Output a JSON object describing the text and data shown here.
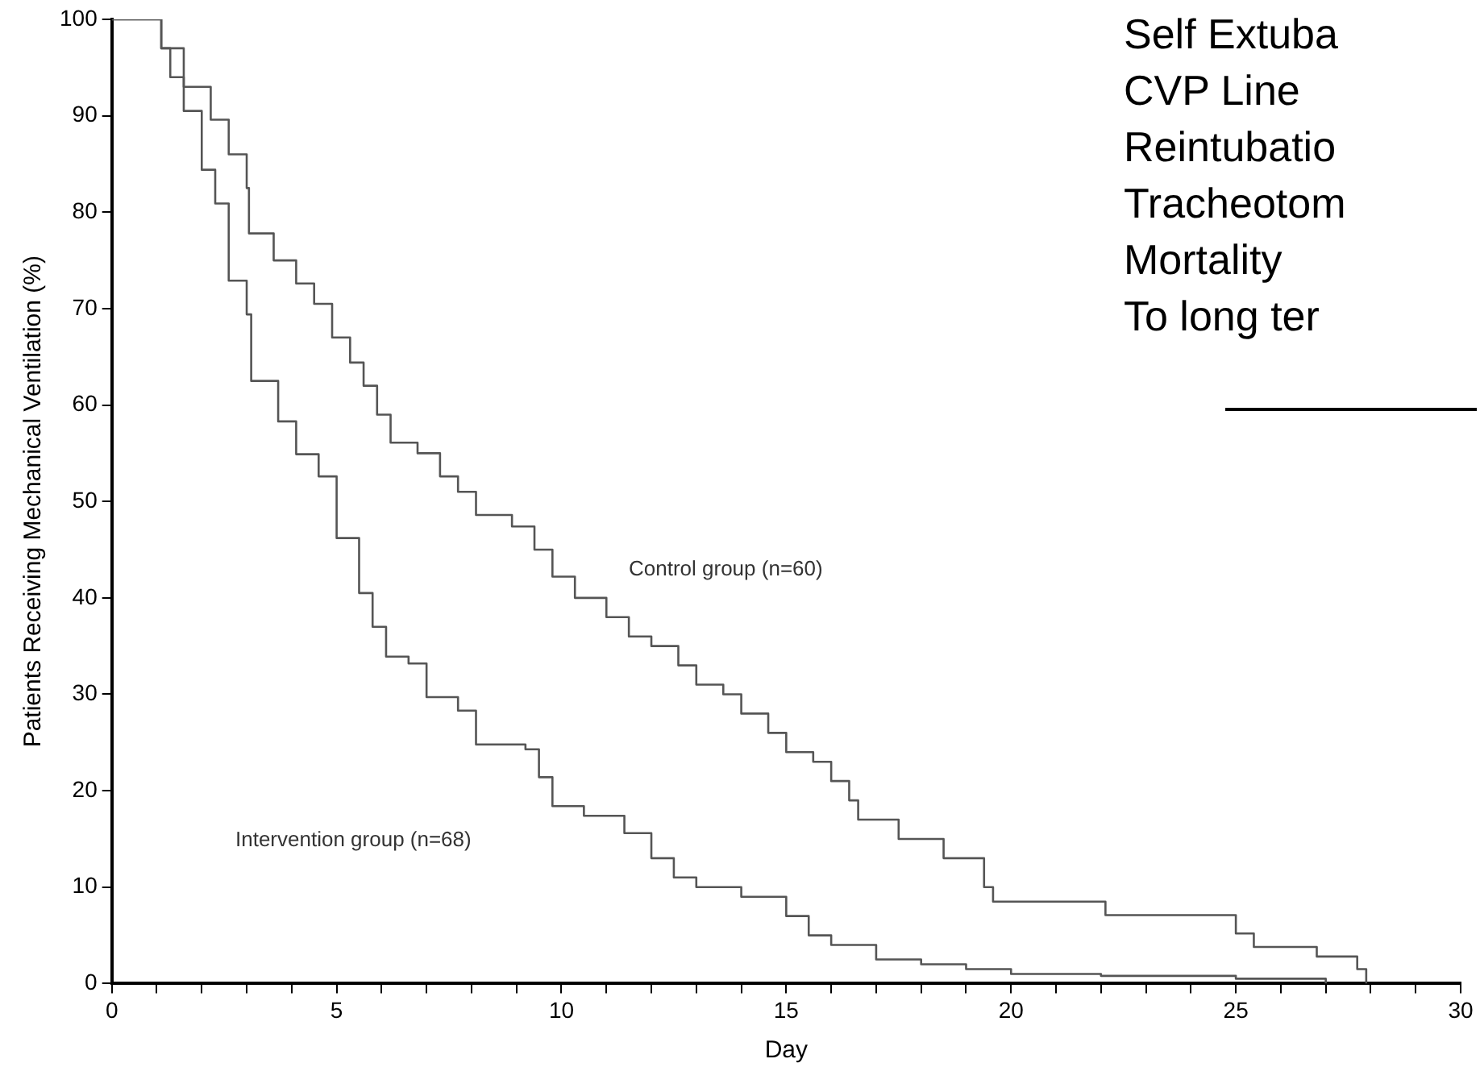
{
  "chart_data": {
    "type": "step",
    "xlabel": "Day",
    "ylabel": "Patients Receiving Mechanical Ventilation (%)",
    "xlim": [
      0,
      30
    ],
    "ylim": [
      0,
      100
    ],
    "xticks": [
      0,
      {
        "value": 1,
        "label": null
      },
      {
        "value": 2,
        "label": null
      },
      {
        "value": 3,
        "label": null
      },
      {
        "value": 4,
        "label": null
      },
      5,
      {
        "value": 6,
        "label": null
      },
      {
        "value": 7,
        "label": null
      },
      {
        "value": 8,
        "label": null
      },
      {
        "value": 9,
        "label": null
      },
      10,
      {
        "value": 11,
        "label": null
      },
      {
        "value": 12,
        "label": null
      },
      {
        "value": 13,
        "label": null
      },
      {
        "value": 14,
        "label": null
      },
      15,
      {
        "value": 16,
        "label": null
      },
      {
        "value": 17,
        "label": null
      },
      {
        "value": 18,
        "label": null
      },
      {
        "value": 19,
        "label": null
      },
      20,
      {
        "value": 21,
        "label": null
      },
      {
        "value": 22,
        "label": null
      },
      {
        "value": 23,
        "label": null
      },
      {
        "value": 24,
        "label": null
      },
      25,
      {
        "value": 26,
        "label": null
      },
      {
        "value": 27,
        "label": null
      },
      {
        "value": 28,
        "label": null
      },
      {
        "value": 29,
        "label": null
      },
      30
    ],
    "yticks": [
      0,
      10,
      20,
      30,
      40,
      50,
      60,
      70,
      80,
      90,
      100
    ],
    "grid": false,
    "legend": false,
    "marker": "none",
    "line_style": "solid",
    "series": [
      {
        "color": "#555555",
        "x": [
          0,
          1.1,
          1.6,
          2.2,
          2.6,
          3.0,
          3.05,
          3.6,
          4.1,
          4.5,
          4.9,
          5.3,
          5.6,
          5.9,
          6.2,
          6.8,
          7.3,
          7.7,
          8.1,
          8.9,
          9.4,
          9.8,
          10.3,
          11.0,
          11.5,
          12.0,
          12.6,
          13.0,
          13.6,
          14.0,
          14.6,
          15.0,
          15.6,
          16.0,
          16.4,
          16.6,
          17.5,
          18.5,
          19.4,
          19.6,
          22.1,
          25.0,
          25.4,
          26.8,
          27.7,
          27.9
        ],
        "values": [
          100,
          97,
          93,
          89.6,
          86,
          82.5,
          77.8,
          75,
          72.6,
          70.5,
          67,
          64.4,
          62,
          59,
          56.1,
          55,
          52.6,
          51,
          48.6,
          47.4,
          45,
          42.2,
          40,
          38,
          36,
          35,
          33,
          31,
          30,
          28,
          26,
          24,
          23,
          21,
          19,
          17,
          15,
          13,
          10,
          8.5,
          7.1,
          5.2,
          3.8,
          2.8,
          1.5,
          0
        ]
      },
      {
        "color": "#555555",
        "x": [
          0,
          1.1,
          1.3,
          1.6,
          2.0,
          2.3,
          2.6,
          3.0,
          3.1,
          3.7,
          4.1,
          4.6,
          5.0,
          5.5,
          5.8,
          6.1,
          6.6,
          7.0,
          7.7,
          8.1,
          9.2,
          9.5,
          9.8,
          10.5,
          11.4,
          12.0,
          12.5,
          13.0,
          14.0,
          15.0,
          15.5,
          16.0,
          17.0,
          18.0,
          19.0,
          20.0,
          22.0,
          25.0,
          27.0
        ],
        "values": [
          100,
          97,
          94,
          90.5,
          84.4,
          80.9,
          72.9,
          69.4,
          62.5,
          58.3,
          54.9,
          52.6,
          46.2,
          40.5,
          37,
          33.9,
          33.2,
          29.7,
          28.3,
          24.8,
          24.3,
          21.4,
          18.4,
          17.4,
          15.6,
          13,
          11,
          10,
          9,
          7,
          5,
          4,
          2.5,
          2,
          1.5,
          1,
          0.8,
          0.5,
          0
        ]
      }
    ],
    "annotations": [
      "Control group (n=60)",
      "Intervention group (n=68)",
      "Self Extuba",
      "CVP Line",
      "Reintubatio",
      "Tracheotom",
      "Mortality",
      "To long ter"
    ]
  }
}
